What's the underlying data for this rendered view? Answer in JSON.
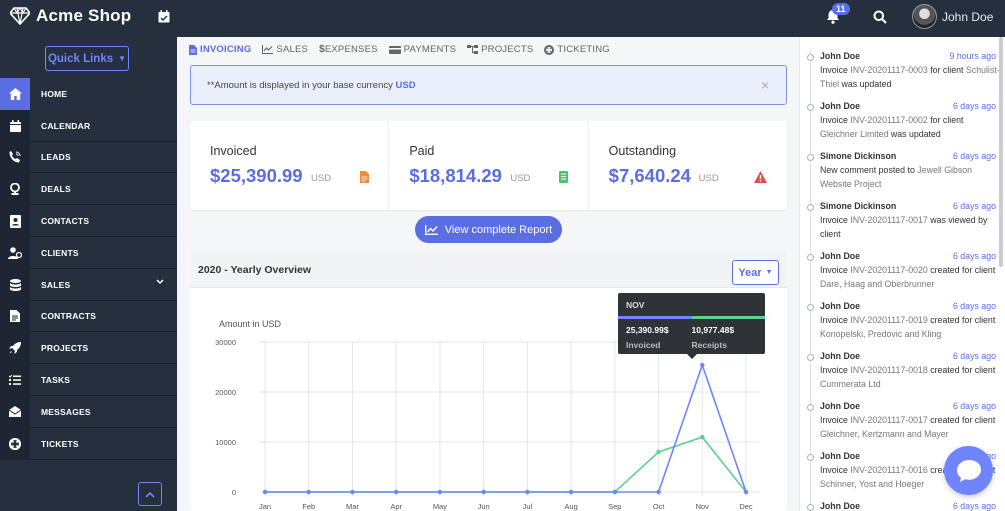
{
  "app": {
    "title": "Acme Shop"
  },
  "header": {
    "notifications_count": "11",
    "user_name": "John Doe"
  },
  "sidebar": {
    "quick_links": "Quick Links",
    "items": [
      {
        "label": "HOME",
        "icon": "home-icon",
        "active": true
      },
      {
        "label": "CALENDAR",
        "icon": "calendar-icon"
      },
      {
        "label": "LEADS",
        "icon": "phone-icon"
      },
      {
        "label": "DEALS",
        "icon": "trophy-icon"
      },
      {
        "label": "CONTACTS",
        "icon": "contact-book-icon"
      },
      {
        "label": "CLIENTS",
        "icon": "users-icon"
      },
      {
        "label": "SALES",
        "icon": "database-icon",
        "has_submenu": true
      },
      {
        "label": "CONTRACTS",
        "icon": "file-icon"
      },
      {
        "label": "PROJECTS",
        "icon": "rocket-icon"
      },
      {
        "label": "TASKS",
        "icon": "list-icon"
      },
      {
        "label": "MESSAGES",
        "icon": "envelope-icon"
      },
      {
        "label": "TICKETS",
        "icon": "life-ring-icon"
      }
    ]
  },
  "tabs": [
    {
      "label": "INVOICING",
      "icon": "invoice-icon",
      "active": true
    },
    {
      "label": "SALES",
      "icon": "chart-line-icon"
    },
    {
      "label": "EXPENSES",
      "icon": "dollar-icon"
    },
    {
      "label": "PAYMENTS",
      "icon": "payment-icon"
    },
    {
      "label": "PROJECTS",
      "icon": "sitemap-icon"
    },
    {
      "label": "TICKETING",
      "icon": "life-ring-icon"
    }
  ],
  "alert": {
    "text": "**Amount is displayed in your base currency ",
    "currency": "USD",
    "close": "×"
  },
  "stats": [
    {
      "label": "Invoiced",
      "amount": "$25,390.99",
      "currency": "USD",
      "icon": "file-invoice-icon",
      "icon_color": "#f08a3c"
    },
    {
      "label": "Paid",
      "amount": "$18,814.29",
      "currency": "USD",
      "icon": "receipt-icon",
      "icon_color": "#4cc46f"
    },
    {
      "label": "Outstanding",
      "amount": "$7,640.24",
      "currency": "USD",
      "icon": "warning-icon",
      "icon_color": "#e24c4c"
    }
  ],
  "report_button": "View complete Report",
  "overview": {
    "title": "2020 - Yearly Overview",
    "period": "Year"
  },
  "chart_data": {
    "type": "line",
    "ylabel": "Amount in USD",
    "categories": [
      "Jan",
      "Feb",
      "Mar",
      "Apr",
      "May",
      "Jun",
      "Jul",
      "Aug",
      "Sep",
      "Oct",
      "Nov",
      "Dec"
    ],
    "ylim": [
      0,
      30000
    ],
    "yticks": [
      0,
      10000,
      20000,
      30000
    ],
    "grid": true,
    "series": [
      {
        "name": "Invoiced",
        "color": "#6f85ff",
        "values": [
          0,
          0,
          0,
          0,
          0,
          0,
          0,
          0,
          0,
          0,
          25390.99,
          0
        ]
      },
      {
        "name": "Receipts",
        "color": "#5fd08e",
        "values": [
          0,
          0,
          0,
          0,
          0,
          0,
          0,
          0,
          0,
          8000,
          10977.48,
          0
        ]
      }
    ],
    "tooltip": {
      "month": "NOV",
      "invoiced": "25,390.99$",
      "receipts": "10,977.48$",
      "invoiced_label": "Invoiced",
      "receipts_label": "Receipts"
    }
  },
  "feed": [
    {
      "user": "John Doe",
      "time": "9 hours ago",
      "pre": "Invoice ",
      "link": "INV-20201117-0003",
      "post": " for client ",
      "link2": "Schulist-Thiel",
      "post2": " was updated"
    },
    {
      "user": "John Doe",
      "time": "6 days ago",
      "pre": "Invoice ",
      "link": "INV-20201117-0002",
      "post": " for client ",
      "link2": "Gleichner Limited",
      "post2": " was updated"
    },
    {
      "user": "Simone Dickinson",
      "time": "6 days ago",
      "pre": "New comment posted to ",
      "link": "Jewell Gibson Website Project",
      "post": "",
      "link2": "",
      "post2": ""
    },
    {
      "user": "Simone Dickinson",
      "time": "6 days ago",
      "pre": "Invoice ",
      "link": "INV-20201117-0017",
      "post": " was viewed by client",
      "link2": "",
      "post2": ""
    },
    {
      "user": "John Doe",
      "time": "6 days ago",
      "pre": "Invoice ",
      "link": "INV-20201117-0020",
      "post": " created for client ",
      "link2": "Dare, Haag and Oberbrunner",
      "post2": ""
    },
    {
      "user": "John Doe",
      "time": "6 days ago",
      "pre": "Invoice ",
      "link": "INV-20201117-0019",
      "post": " created for client ",
      "link2": "Konopelski, Predovic and Kling",
      "post2": ""
    },
    {
      "user": "John Doe",
      "time": "6 days ago",
      "pre": "Invoice ",
      "link": "INV-20201117-0018",
      "post": " created for client ",
      "link2": "Cummerata Ltd",
      "post2": ""
    },
    {
      "user": "John Doe",
      "time": "6 days ago",
      "pre": "Invoice ",
      "link": "INV-20201117-0017",
      "post": " created for client ",
      "link2": "Gleichner, Kertzmann and Mayer",
      "post2": ""
    },
    {
      "user": "John Doe",
      "time": "6 days ago",
      "pre": "Invoice ",
      "link": "INV-20201117-0016",
      "post": " created for client ",
      "link2": "Schinner, Yost and Hoeger",
      "post2": ""
    },
    {
      "user": "John Doe",
      "time": "6 days ago",
      "pre": "",
      "link": "",
      "post": "",
      "link2": "",
      "post2": ""
    }
  ]
}
